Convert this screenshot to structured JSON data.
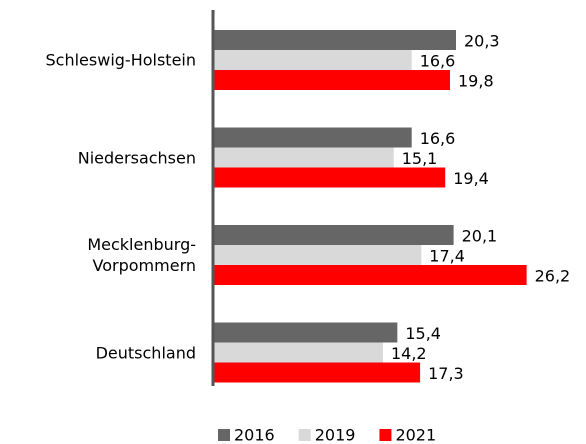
{
  "chart_data": {
    "type": "bar",
    "orientation": "horizontal",
    "categories": [
      "Schleswig-Holstein",
      "Niedersachsen",
      "Mecklenburg-Vorpommern",
      "Deutschland"
    ],
    "series": [
      {
        "name": "2016",
        "color": "#666666",
        "values": [
          20.3,
          16.6,
          20.1,
          15.4
        ],
        "value_labels": [
          "20,3",
          "16,6",
          "20,1",
          "15,4"
        ]
      },
      {
        "name": "2019",
        "color": "#d9d9d9",
        "values": [
          16.6,
          15.1,
          17.4,
          14.2
        ],
        "value_labels": [
          "16,6",
          "15,1",
          "17,4",
          "14,2"
        ]
      },
      {
        "name": "2021",
        "color": "#ff0000",
        "values": [
          19.8,
          19.4,
          26.2,
          17.3
        ],
        "value_labels": [
          "19,8",
          "19,4",
          "26,2",
          "17,3"
        ]
      }
    ],
    "legend": "bottom"
  }
}
